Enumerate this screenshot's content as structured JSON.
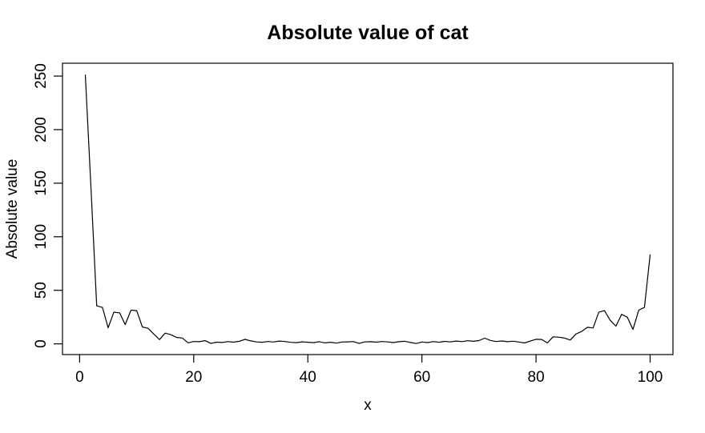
{
  "figure": {
    "background_color": "#ffffff",
    "foreground_color": "#000000"
  },
  "chart_data": {
    "type": "line",
    "title": "Absolute value of cat",
    "xlabel": "x",
    "ylabel": "Absolute value",
    "line_color": "#000000",
    "grid": false,
    "legend": false,
    "x_ticks": [
      0,
      20,
      40,
      60,
      80,
      100
    ],
    "y_ticks": [
      0,
      50,
      100,
      150,
      200,
      250
    ],
    "xlim": [
      -3,
      104
    ],
    "ylim": [
      -10,
      262
    ],
    "x": [
      1,
      2,
      3,
      4,
      5,
      6,
      7,
      8,
      9,
      10,
      11,
      12,
      13,
      14,
      15,
      16,
      17,
      18,
      19,
      20,
      21,
      22,
      23,
      24,
      25,
      26,
      27,
      28,
      29,
      30,
      31,
      32,
      33,
      34,
      35,
      36,
      37,
      38,
      39,
      40,
      41,
      42,
      43,
      44,
      45,
      46,
      47,
      48,
      49,
      50,
      51,
      52,
      53,
      54,
      55,
      56,
      57,
      58,
      59,
      60,
      61,
      62,
      63,
      64,
      65,
      66,
      67,
      68,
      69,
      70,
      71,
      72,
      73,
      74,
      75,
      76,
      77,
      78,
      79,
      80,
      81,
      82,
      83,
      84,
      85,
      86,
      87,
      88,
      89,
      90,
      91,
      92,
      93,
      94,
      95,
      96,
      97,
      98,
      99,
      100
    ],
    "values": [
      251,
      145,
      35.5,
      34,
      15,
      29.5,
      29,
      18,
      31.5,
      31,
      15.8,
      14.5,
      9.2,
      4,
      10,
      8.5,
      6,
      5.5,
      1,
      2.2,
      2,
      3,
      0.4,
      1.6,
      1.3,
      2.1,
      1.6,
      2.4,
      4.2,
      2.8,
      1.8,
      1.5,
      2.2,
      1.7,
      2.6,
      2.2,
      1.4,
      1.1,
      1.9,
      1.5,
      1.1,
      2,
      0.9,
      1.5,
      0.7,
      1.7,
      1.9,
      2.1,
      0.4,
      1.8,
      2,
      1.6,
      2.2,
      1.8,
      1.2,
      2,
      2.4,
      1.3,
      0.3,
      1.7,
      1.2,
      2.1,
      1.5,
      2.3,
      1.8,
      2.6,
      2.1,
      2.9,
      2.4,
      3.1,
      5.3,
      3.2,
      2.2,
      2.7,
      2,
      2.5,
      1.7,
      0.8,
      2.6,
      4.3,
      4.1,
      0.8,
      6.6,
      6.2,
      5.4,
      3.6,
      9.2,
      11.6,
      15.5,
      14.8,
      29.5,
      31,
      22,
      16.5,
      27.5,
      25,
      13.5,
      31.5,
      34,
      83
    ]
  }
}
